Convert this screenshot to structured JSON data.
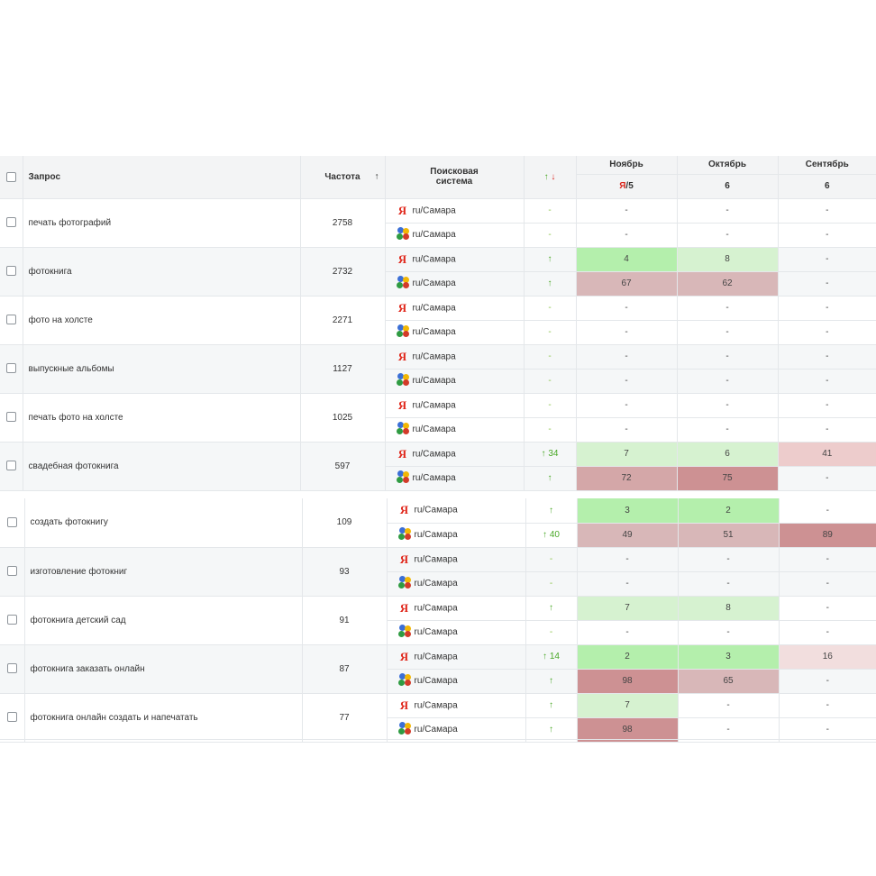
{
  "header": {
    "query": "Запрос",
    "frequency": "Частота",
    "sort_arrow": "↑",
    "engine_line1": "Поисковая",
    "engine_line2": "система",
    "trend_up": "↑",
    "trend_down": "↓",
    "months": [
      "Ноябрь",
      "Октябрь",
      "Сентябрь"
    ],
    "nov_sub_ya": "Я",
    "nov_sub_rest": "/5",
    "oct_sub": "6",
    "sep_sub": "6"
  },
  "colors": {
    "yandex": "#e0281c",
    "trend_green": "#49a827",
    "good_strong": "#b4efac",
    "good_light": "#d6f2d0",
    "bad_strong": "#cd9193",
    "bad_mid": "#d4a7a8",
    "bad_light": "#f2dede"
  },
  "rows": [
    {
      "query": "печать фотографий",
      "freq": "2758",
      "ya": {
        "region": "ru/Самара",
        "trend": "-",
        "nov": "-",
        "oct": "-",
        "sep": "-"
      },
      "g": {
        "region": "ru/Самара",
        "trend": "-",
        "nov": "-",
        "oct": "-",
        "sep": "-"
      }
    },
    {
      "query": "фотокнига",
      "freq": "2732",
      "ya": {
        "region": "ru/Самара",
        "trend": "↑",
        "nov": "4",
        "oct": "8",
        "sep": "-"
      },
      "g": {
        "region": "ru/Самара",
        "trend": "↑",
        "nov": "67",
        "oct": "62",
        "sep": "-"
      }
    },
    {
      "query": "фото на холсте",
      "freq": "2271",
      "ya": {
        "region": "ru/Самара",
        "trend": "-",
        "nov": "-",
        "oct": "-",
        "sep": "-"
      },
      "g": {
        "region": "ru/Самара",
        "trend": "-",
        "nov": "-",
        "oct": "-",
        "sep": "-"
      }
    },
    {
      "query": "выпускные альбомы",
      "freq": "1127",
      "ya": {
        "region": "ru/Самара",
        "trend": "-",
        "nov": "-",
        "oct": "-",
        "sep": "-"
      },
      "g": {
        "region": "ru/Самара",
        "trend": "-",
        "nov": "-",
        "oct": "-",
        "sep": "-"
      }
    },
    {
      "query": "печать фото на холсте",
      "freq": "1025",
      "ya": {
        "region": "ru/Самара",
        "trend": "-",
        "nov": "-",
        "oct": "-",
        "sep": "-"
      },
      "g": {
        "region": "ru/Самара",
        "trend": "-",
        "nov": "-",
        "oct": "-",
        "sep": "-"
      }
    },
    {
      "query": "свадебная фотокнига",
      "freq": "597",
      "ya": {
        "region": "ru/Самара",
        "trend": "↑ 34",
        "nov": "7",
        "oct": "6",
        "sep": "41"
      },
      "g": {
        "region": "ru/Самара",
        "trend": "↑",
        "nov": "72",
        "oct": "75",
        "sep": "-"
      }
    },
    {
      "query": "создать фотокнигу",
      "freq": "109",
      "ya": {
        "region": "ru/Самара",
        "trend": "↑",
        "nov": "3",
        "oct": "2",
        "sep": "-"
      },
      "g": {
        "region": "ru/Самара",
        "trend": "↑ 40",
        "nov": "49",
        "oct": "51",
        "sep": "89"
      }
    },
    {
      "query": "изготовление фотокниг",
      "freq": "93",
      "ya": {
        "region": "ru/Самара",
        "trend": "-",
        "nov": "-",
        "oct": "-",
        "sep": "-"
      },
      "g": {
        "region": "ru/Самара",
        "trend": "-",
        "nov": "-",
        "oct": "-",
        "sep": "-"
      }
    },
    {
      "query": "фотокнига детский сад",
      "freq": "91",
      "ya": {
        "region": "ru/Самара",
        "trend": "↑",
        "nov": "7",
        "oct": "8",
        "sep": "-"
      },
      "g": {
        "region": "ru/Самара",
        "trend": "-",
        "nov": "-",
        "oct": "-",
        "sep": "-"
      }
    },
    {
      "query": "фотокнига заказать онлайн",
      "freq": "87",
      "ya": {
        "region": "ru/Самара",
        "trend": "↑ 14",
        "nov": "2",
        "oct": "3",
        "sep": "16"
      },
      "g": {
        "region": "ru/Самара",
        "trend": "↑",
        "nov": "98",
        "oct": "65",
        "sep": "-"
      }
    },
    {
      "query": "фотокнига онлайн создать и напечатать",
      "freq": "77",
      "ya": {
        "region": "ru/Самара",
        "trend": "↑",
        "nov": "7",
        "oct": "-",
        "sep": "-"
      },
      "g": {
        "region": "ru/Самара",
        "trend": "↑",
        "nov": "98",
        "oct": "-",
        "sep": "-"
      }
    }
  ]
}
